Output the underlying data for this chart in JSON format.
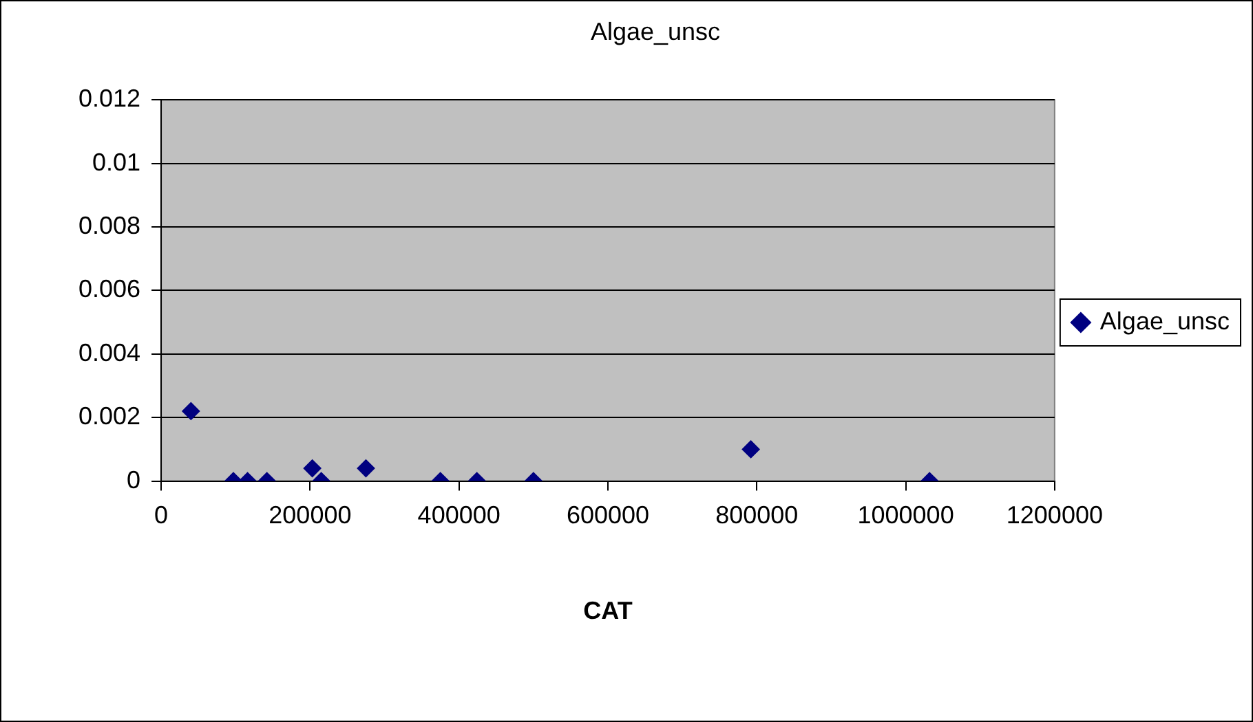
{
  "chart_data": {
    "type": "scatter",
    "title": "Algae_unsc",
    "xlabel": "CAT",
    "x": [
      40000,
      97000,
      116000,
      142000,
      203000,
      215000,
      275000,
      375000,
      424000,
      500000,
      792000,
      1032000
    ],
    "series": [
      {
        "name": "Algae_unsc",
        "color": "#000080",
        "values": [
          0.0022,
          0,
          0,
          0,
          0.0004,
          0,
          0.0004,
          0,
          0,
          0,
          0.001,
          0
        ]
      }
    ],
    "xlim": [
      0,
      1200000
    ],
    "xticks": [
      0,
      200000,
      400000,
      600000,
      800000,
      1000000,
      1200000
    ],
    "ylim": [
      0,
      0.012
    ],
    "yticks": [
      0,
      0.002,
      0.004,
      0.006,
      0.008,
      0.01,
      0.012
    ],
    "grid": "y",
    "legend": "right",
    "marker": "diamond"
  }
}
